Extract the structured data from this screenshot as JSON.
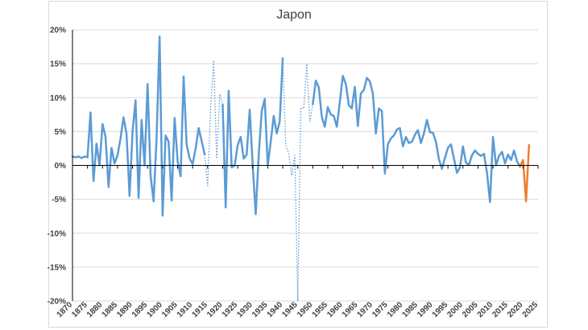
{
  "chart_data": {
    "type": "line",
    "title": "Japon",
    "xlabel": "",
    "ylabel": "",
    "xlim": [
      1870,
      2025
    ],
    "ylim": [
      -20,
      20
    ],
    "x_ticks": [
      1870,
      1875,
      1880,
      1885,
      1890,
      1895,
      1900,
      1905,
      1910,
      1915,
      1920,
      1925,
      1930,
      1935,
      1940,
      1945,
      1950,
      1955,
      1960,
      1965,
      1970,
      1975,
      1980,
      1985,
      1990,
      1995,
      2000,
      2005,
      2010,
      2015,
      2020,
      2025
    ],
    "y_ticks": [
      "20%",
      "15%",
      "10%",
      "5%",
      "0%",
      "-5%",
      "-10%",
      "-15%",
      "-20%"
    ],
    "y_tick_values": [
      20,
      15,
      10,
      5,
      0,
      -5,
      -10,
      -15,
      -20
    ],
    "grid": "horizontal",
    "legend": "none",
    "colors": {
      "historical": "#5b9bd5",
      "dotted": "#5b9bd5",
      "recent": "#ed7d31",
      "zero_line": "#000000",
      "grid": "#d9d9d9"
    },
    "series": [
      {
        "style": "solid",
        "color": "#5b9bd5",
        "segments": [
          [
            [
              1870,
              1.3
            ],
            [
              1871,
              1.2
            ],
            [
              1872,
              1.3
            ],
            [
              1873,
              1.1
            ],
            [
              1874,
              1.3
            ],
            [
              1875,
              1.2
            ],
            [
              1876,
              7.8
            ],
            [
              1877,
              -2.3
            ],
            [
              1878,
              3.2
            ],
            [
              1879,
              0.0
            ],
            [
              1880,
              6.1
            ],
            [
              1881,
              4.2
            ],
            [
              1882,
              -3.2
            ],
            [
              1883,
              2.6
            ],
            [
              1884,
              0.3
            ],
            [
              1885,
              1.5
            ],
            [
              1886,
              4.0
            ],
            [
              1887,
              7.1
            ],
            [
              1888,
              4.6
            ],
            [
              1889,
              -4.5
            ],
            [
              1890,
              5.0
            ],
            [
              1891,
              9.6
            ],
            [
              1892,
              -4.8
            ],
            [
              1893,
              6.7
            ],
            [
              1894,
              0.0
            ],
            [
              1895,
              12.0
            ],
            [
              1896,
              -1.5
            ],
            [
              1897,
              -5.3
            ],
            [
              1898,
              4.1
            ],
            [
              1899,
              19.0
            ],
            [
              1900,
              -7.4
            ],
            [
              1901,
              4.4
            ],
            [
              1902,
              3.5
            ],
            [
              1903,
              -5.2
            ],
            [
              1904,
              7.0
            ],
            [
              1905,
              0.6
            ],
            [
              1906,
              -1.6
            ],
            [
              1907,
              13.1
            ],
            [
              1908,
              3.1
            ],
            [
              1909,
              1.0
            ],
            [
              1910,
              0.2
            ],
            [
              1911,
              2.5
            ],
            [
              1912,
              5.5
            ],
            [
              1913,
              3.6
            ],
            [
              1914,
              1.6
            ]
          ],
          [
            [
              1920,
              9.0
            ],
            [
              1921,
              -6.2
            ],
            [
              1922,
              11.0
            ],
            [
              1923,
              -0.3
            ],
            [
              1924,
              0.0
            ],
            [
              1925,
              3.0
            ],
            [
              1926,
              4.2
            ],
            [
              1927,
              1.0
            ],
            [
              1928,
              1.6
            ],
            [
              1929,
              8.2
            ],
            [
              1930,
              0.0
            ],
            [
              1931,
              -7.2
            ],
            [
              1932,
              1.5
            ],
            [
              1933,
              8.0
            ],
            [
              1934,
              9.8
            ],
            [
              1935,
              0.0
            ],
            [
              1936,
              3.5
            ],
            [
              1937,
              7.3
            ],
            [
              1938,
              4.7
            ],
            [
              1939,
              6.5
            ],
            [
              1940,
              15.8
            ]
          ],
          [
            [
              1950,
              9.0
            ],
            [
              1951,
              12.5
            ],
            [
              1952,
              11.5
            ],
            [
              1953,
              7.2
            ],
            [
              1954,
              5.7
            ],
            [
              1955,
              8.6
            ],
            [
              1956,
              7.5
            ],
            [
              1957,
              7.3
            ],
            [
              1958,
              5.7
            ],
            [
              1959,
              9.3
            ],
            [
              1960,
              13.2
            ],
            [
              1961,
              12.0
            ],
            [
              1962,
              8.9
            ],
            [
              1963,
              8.4
            ],
            [
              1964,
              11.6
            ],
            [
              1965,
              5.8
            ],
            [
              1966,
              10.6
            ],
            [
              1967,
              11.1
            ],
            [
              1968,
              12.9
            ],
            [
              1969,
              12.4
            ],
            [
              1970,
              10.6
            ],
            [
              1971,
              4.7
            ],
            [
              1972,
              8.4
            ],
            [
              1973,
              8.0
            ],
            [
              1974,
              -1.2
            ],
            [
              1975,
              3.1
            ],
            [
              1976,
              4.0
            ],
            [
              1977,
              4.4
            ],
            [
              1978,
              5.3
            ],
            [
              1979,
              5.5
            ],
            [
              1980,
              2.8
            ],
            [
              1981,
              4.2
            ],
            [
              1982,
              3.3
            ],
            [
              1983,
              3.5
            ],
            [
              1984,
              4.5
            ],
            [
              1985,
              5.2
            ],
            [
              1986,
              3.3
            ],
            [
              1987,
              4.7
            ],
            [
              1988,
              6.7
            ],
            [
              1989,
              4.9
            ],
            [
              1990,
              4.8
            ],
            [
              1991,
              3.5
            ],
            [
              1992,
              0.9
            ],
            [
              1993,
              -0.5
            ],
            [
              1994,
              1.1
            ],
            [
              1995,
              2.6
            ],
            [
              1996,
              3.1
            ],
            [
              1997,
              1.0
            ],
            [
              1998,
              -1.1
            ],
            [
              1999,
              -0.3
            ],
            [
              2000,
              2.8
            ],
            [
              2001,
              0.4
            ],
            [
              2002,
              0.1
            ],
            [
              2003,
              1.5
            ],
            [
              2004,
              2.2
            ],
            [
              2005,
              1.7
            ],
            [
              2006,
              1.4
            ],
            [
              2007,
              1.7
            ],
            [
              2008,
              -1.1
            ],
            [
              2009,
              -5.4
            ],
            [
              2010,
              4.2
            ],
            [
              2011,
              0.0
            ],
            [
              2012,
              1.4
            ],
            [
              2013,
              2.0
            ],
            [
              2014,
              0.3
            ],
            [
              2015,
              1.6
            ],
            [
              2016,
              0.8
            ],
            [
              2017,
              2.2
            ],
            [
              2018,
              0.6
            ],
            [
              2019,
              -0.2
            ]
          ]
        ]
      },
      {
        "style": "dotted",
        "color": "#5b9bd5",
        "segments": [
          [
            [
              1914,
              1.6
            ],
            [
              1915,
              -3.0
            ],
            [
              1916,
              8.5
            ],
            [
              1917,
              15.5
            ],
            [
              1918,
              1.0
            ],
            [
              1919,
              10.5
            ],
            [
              1920,
              9.0
            ]
          ],
          [
            [
              1940,
              15.8
            ],
            [
              1941,
              3.0
            ],
            [
              1942,
              1.7
            ],
            [
              1943,
              -1.5
            ],
            [
              1944,
              1.5
            ],
            [
              1945,
              -20.0
            ],
            [
              1946,
              8.5
            ],
            [
              1947,
              8.4
            ],
            [
              1948,
              15.0
            ],
            [
              1949,
              6.5
            ],
            [
              1950,
              9.0
            ]
          ]
        ]
      },
      {
        "style": "solid",
        "color": "#ed7d31",
        "segments": [
          [
            [
              2019,
              -0.2
            ],
            [
              2020,
              0.8
            ],
            [
              2021,
              -5.3
            ],
            [
              2022,
              3.0
            ]
          ]
        ]
      }
    ]
  }
}
